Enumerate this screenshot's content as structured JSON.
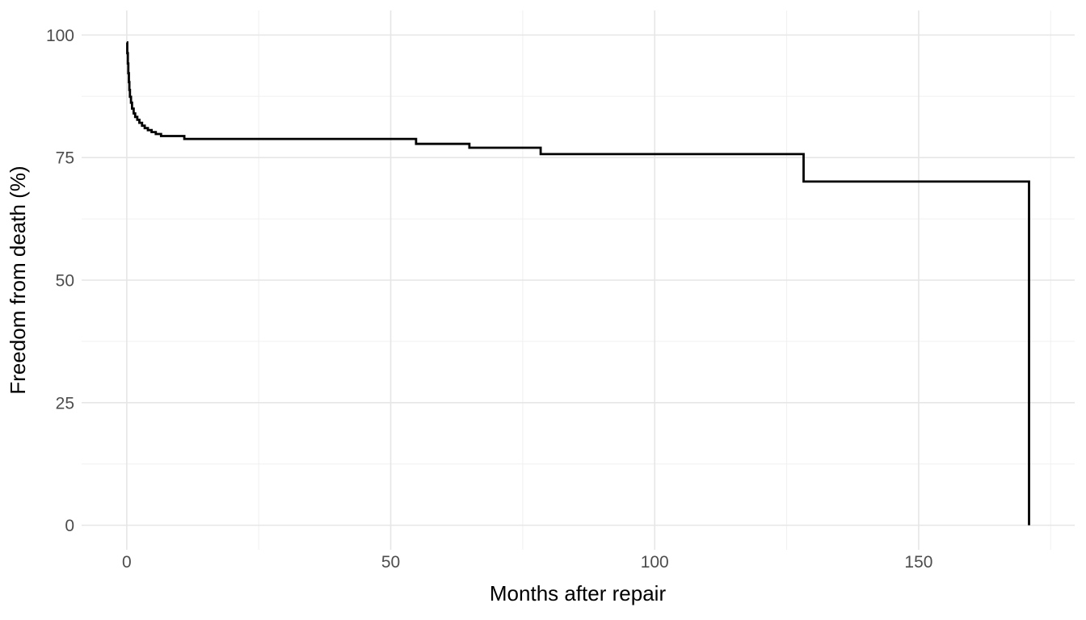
{
  "figure": {
    "background": "#ffffff"
  },
  "chart_data": {
    "type": "line",
    "chart_kind": "kaplan-meier-survival-step-curve",
    "title": "",
    "xlabel": "Months after repair",
    "ylabel": "Freedom from death (%)",
    "x_tick_values": [
      0,
      50,
      100,
      150
    ],
    "x_tick_labels": [
      "0",
      "50",
      "100",
      "150"
    ],
    "y_tick_values": [
      0,
      25,
      50,
      75,
      100
    ],
    "y_tick_labels": [
      "0",
      "25",
      "50",
      "75",
      "100"
    ],
    "x_minor_breaks": [
      25,
      75,
      125,
      175
    ],
    "y_minor_breaks": [
      12.5,
      37.5,
      62.5,
      87.5
    ],
    "xlim": [
      0,
      171
    ],
    "ylim": [
      0,
      100
    ],
    "axis_expansion_fraction": 0.05,
    "grid": "major+minor",
    "legend": "none",
    "series": [
      {
        "name": "Freedom from death",
        "step_points": [
          [
            0,
            98.5
          ],
          [
            0.1,
            96.3
          ],
          [
            0.2,
            94.2
          ],
          [
            0.3,
            92.2
          ],
          [
            0.4,
            90.4
          ],
          [
            0.5,
            88.8
          ],
          [
            0.6,
            87.4
          ],
          [
            0.8,
            86.2
          ],
          [
            1.0,
            85.0
          ],
          [
            1.3,
            84.0
          ],
          [
            1.6,
            83.3
          ],
          [
            2.0,
            82.7
          ],
          [
            2.4,
            82.1
          ],
          [
            2.9,
            81.5
          ],
          [
            3.4,
            81.0
          ],
          [
            4.0,
            80.6
          ],
          [
            4.7,
            80.2
          ],
          [
            5.5,
            79.8
          ],
          [
            6.5,
            79.4
          ],
          [
            10.9,
            78.8
          ],
          [
            54.8,
            77.8
          ],
          [
            64.9,
            77.0
          ],
          [
            78.4,
            75.7
          ],
          [
            128.2,
            70.1
          ],
          [
            170.9,
            0
          ]
        ]
      }
    ],
    "colors": {
      "curve": "#000000",
      "grid_major": "#e6e6e6",
      "grid_minor": "#f0f0f0",
      "tick_label": "#4d4d4d",
      "axis_title": "#000000",
      "panel_background": "#ffffff"
    }
  }
}
